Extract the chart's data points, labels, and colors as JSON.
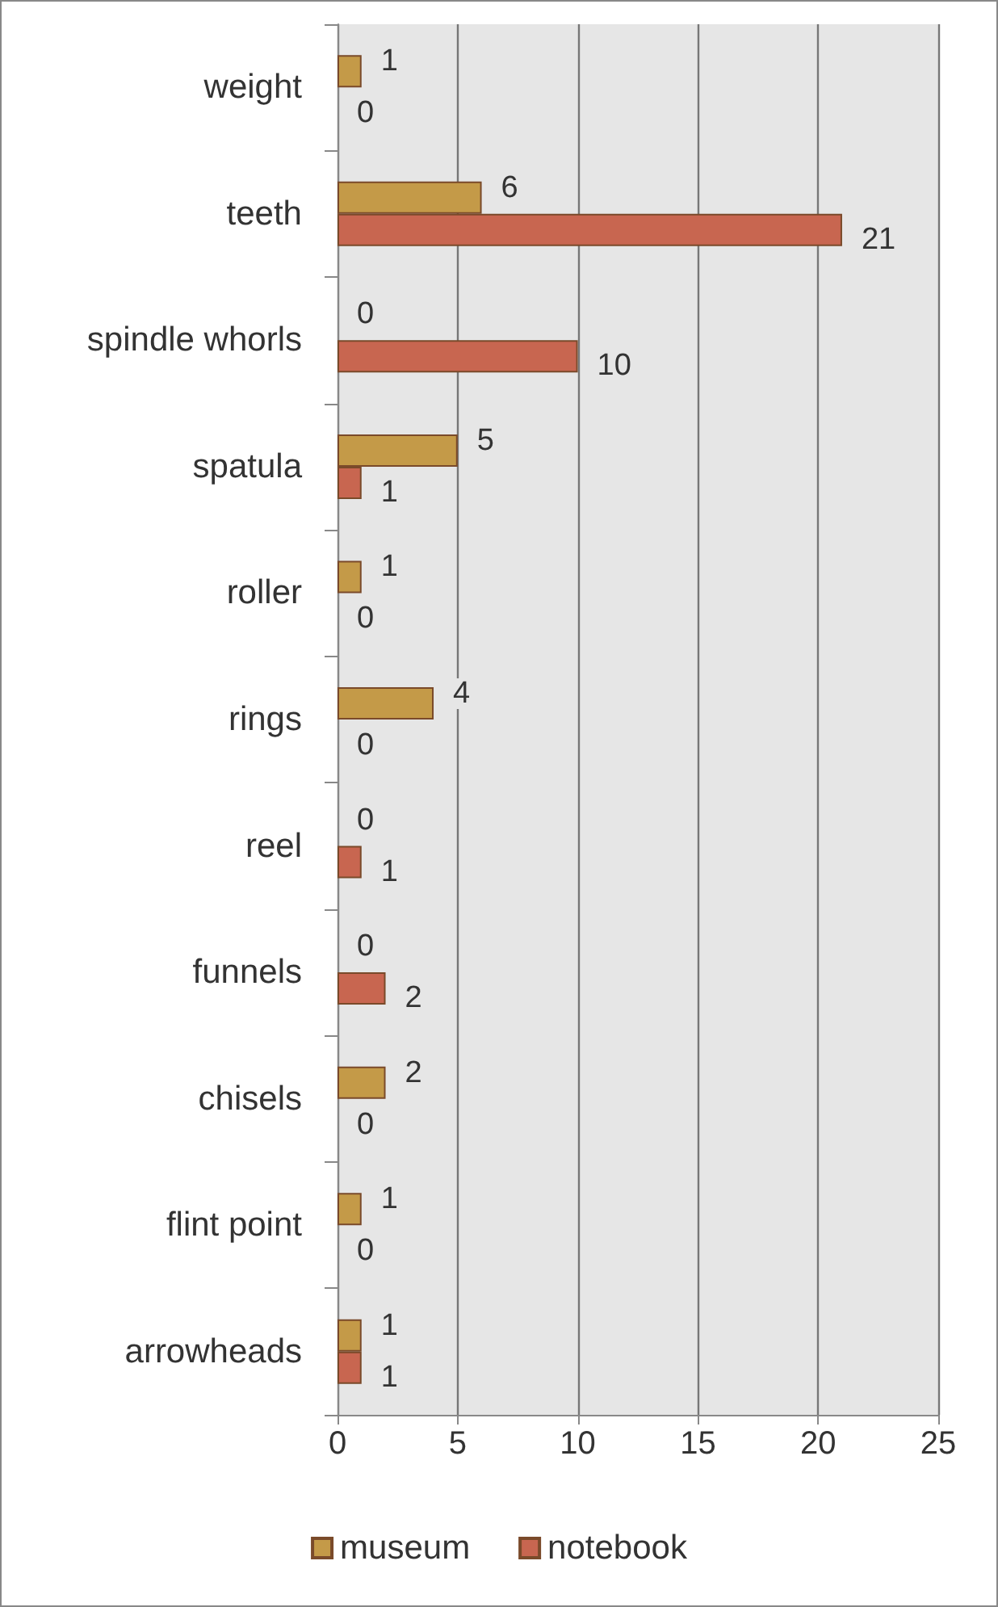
{
  "chart_data": {
    "type": "bar",
    "orientation": "horizontal",
    "categories": [
      "weight",
      "teeth",
      "spindle whorls",
      "spatula",
      "roller",
      "rings",
      "reel",
      "funnels",
      "chisels",
      "flint point",
      "arrowheads"
    ],
    "series": [
      {
        "name": "museum",
        "color": "#c49a48",
        "values": [
          1,
          6,
          0,
          5,
          1,
          4,
          0,
          0,
          2,
          1,
          1
        ]
      },
      {
        "name": "notebook",
        "color": "#c86650",
        "values": [
          0,
          21,
          10,
          1,
          0,
          0,
          1,
          2,
          0,
          0,
          1
        ]
      }
    ],
    "xlim": [
      0,
      25
    ],
    "xticks": [
      0,
      5,
      10,
      15,
      20,
      25
    ],
    "grid": "x",
    "legend": "bottom",
    "data_labels": true
  }
}
